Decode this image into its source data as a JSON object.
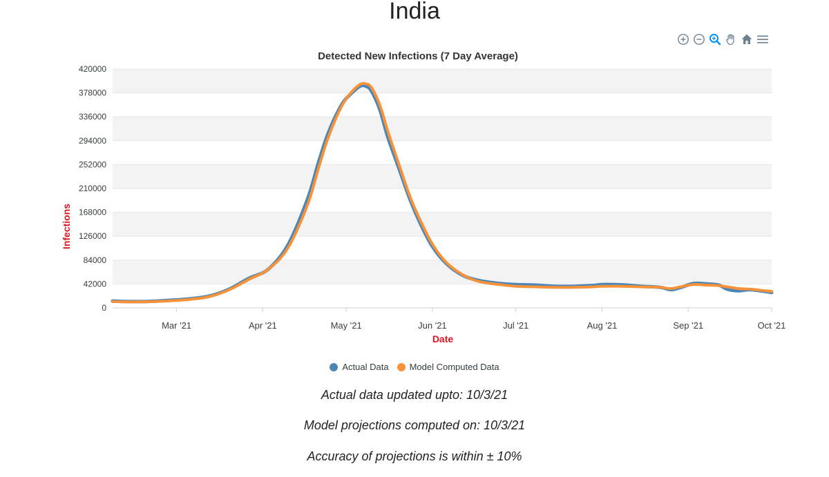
{
  "page": {
    "title": "India"
  },
  "toolbar": {
    "buttons": [
      {
        "name": "zoom-in-icon"
      },
      {
        "name": "zoom-out-icon"
      },
      {
        "name": "selection-zoom-icon"
      },
      {
        "name": "pan-hand-icon"
      },
      {
        "name": "reset-home-icon"
      },
      {
        "name": "menu-icon"
      }
    ]
  },
  "notes": {
    "actual_updated": "Actual data updated upto: 10/3/21",
    "model_computed": "Model projections computed on: 10/3/21",
    "accuracy": "Accuracy of projections is within ± 10%"
  },
  "colors": {
    "actual": "#4a86b8",
    "model": "#f6923a",
    "axis_title": "#e0141e",
    "grid_band": "#f3f3f3",
    "grid_line": "#e6e6e6",
    "toolbar_icon": "#6e8192",
    "toolbar_active": "#008ffb"
  },
  "chart_data": {
    "type": "line",
    "title": "Detected New Infections (7 Day Average)",
    "xlabel": "Date",
    "ylabel": "Infections",
    "ylim": [
      0,
      420000
    ],
    "xlim": [
      "2021-02-06",
      "2021-10-01"
    ],
    "yticks": [
      0,
      42000,
      84000,
      126000,
      168000,
      210000,
      252000,
      294000,
      336000,
      378000,
      420000
    ],
    "xticks": [
      {
        "date": "2021-03-01",
        "label": "Mar '21"
      },
      {
        "date": "2021-04-01",
        "label": "Apr '21"
      },
      {
        "date": "2021-05-01",
        "label": "May '21"
      },
      {
        "date": "2021-06-01",
        "label": "Jun '21"
      },
      {
        "date": "2021-07-01",
        "label": "Jul '21"
      },
      {
        "date": "2021-08-01",
        "label": "Aug '21"
      },
      {
        "date": "2021-09-01",
        "label": "Sep '21"
      },
      {
        "date": "2021-10-01",
        "label": "Oct '21"
      }
    ],
    "grid": true,
    "legend": "bottom-center",
    "series": [
      {
        "name": "Actual Data",
        "x": [
          "2021-02-06",
          "2021-02-13",
          "2021-02-20",
          "2021-02-27",
          "2021-03-06",
          "2021-03-13",
          "2021-03-20",
          "2021-03-27",
          "2021-04-03",
          "2021-04-10",
          "2021-04-17",
          "2021-04-21",
          "2021-04-24",
          "2021-04-27",
          "2021-04-30",
          "2021-05-03",
          "2021-05-06",
          "2021-05-08",
          "2021-05-10",
          "2021-05-13",
          "2021-05-16",
          "2021-05-20",
          "2021-05-24",
          "2021-05-28",
          "2021-06-01",
          "2021-06-06",
          "2021-06-12",
          "2021-06-18",
          "2021-06-25",
          "2021-07-01",
          "2021-07-08",
          "2021-07-15",
          "2021-07-22",
          "2021-07-29",
          "2021-08-01",
          "2021-08-08",
          "2021-08-15",
          "2021-08-22",
          "2021-08-26",
          "2021-08-30",
          "2021-09-03",
          "2021-09-08",
          "2021-09-12",
          "2021-09-15",
          "2021-09-19",
          "2021-09-23",
          "2021-09-27",
          "2021-10-01"
        ],
        "values": [
          12000,
          11000,
          11500,
          13500,
          16000,
          21000,
          33000,
          52000,
          68000,
          110000,
          190000,
          255000,
          300000,
          335000,
          362000,
          378000,
          390000,
          390000,
          382000,
          350000,
          300000,
          245000,
          190000,
          145000,
          108000,
          78000,
          57000,
          48000,
          43000,
          41000,
          40000,
          38000,
          38000,
          39500,
          41000,
          40500,
          38000,
          36000,
          32000,
          37000,
          43000,
          42000,
          40000,
          33000,
          30000,
          32000,
          30000,
          27000
        ]
      },
      {
        "name": "Model Computed Data",
        "x": [
          "2021-02-06",
          "2021-02-13",
          "2021-02-20",
          "2021-02-27",
          "2021-03-06",
          "2021-03-13",
          "2021-03-20",
          "2021-03-27",
          "2021-04-03",
          "2021-04-10",
          "2021-04-17",
          "2021-04-21",
          "2021-04-24",
          "2021-04-27",
          "2021-04-30",
          "2021-05-03",
          "2021-05-06",
          "2021-05-08",
          "2021-05-10",
          "2021-05-13",
          "2021-05-16",
          "2021-05-20",
          "2021-05-24",
          "2021-05-28",
          "2021-06-01",
          "2021-06-06",
          "2021-06-12",
          "2021-06-18",
          "2021-06-25",
          "2021-07-01",
          "2021-07-08",
          "2021-07-15",
          "2021-07-22",
          "2021-07-29",
          "2021-08-01",
          "2021-08-08",
          "2021-08-15",
          "2021-08-22",
          "2021-08-26",
          "2021-08-30",
          "2021-09-03",
          "2021-09-08",
          "2021-09-12",
          "2021-09-15",
          "2021-09-19",
          "2021-09-23",
          "2021-09-27",
          "2021-10-01"
        ],
        "values": [
          11000,
          10500,
          11000,
          12500,
          15000,
          20000,
          32000,
          50000,
          68000,
          105000,
          180000,
          245000,
          292000,
          330000,
          360000,
          380000,
          393000,
          394000,
          388000,
          358000,
          310000,
          252000,
          195000,
          150000,
          112000,
          80000,
          58000,
          46000,
          41000,
          38000,
          37000,
          36000,
          36000,
          37000,
          38000,
          38000,
          37000,
          36000,
          34000,
          38000,
          41000,
          40000,
          39000,
          37000,
          34000,
          33000,
          31000,
          29000
        ]
      }
    ]
  }
}
